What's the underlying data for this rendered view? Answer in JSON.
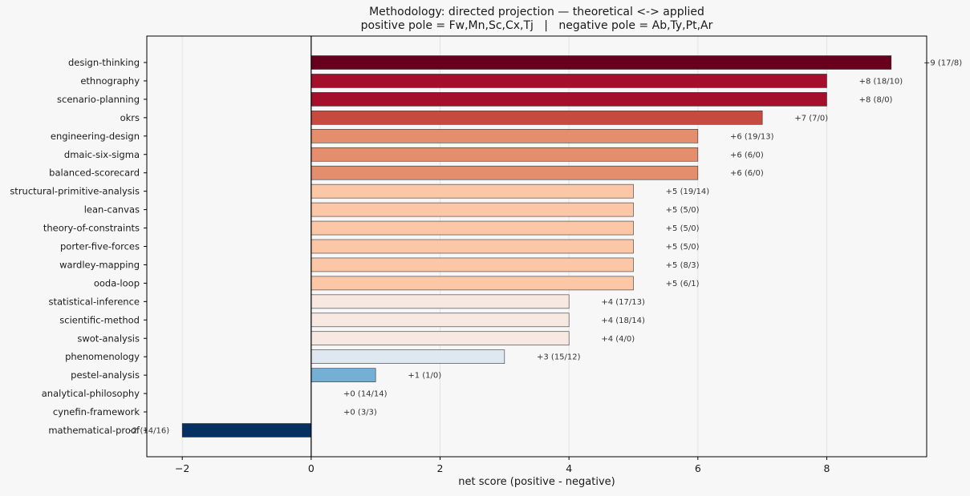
{
  "chart_data": {
    "type": "bar",
    "orientation": "horizontal",
    "title": "Methodology: directed projection — theoretical <-> applied",
    "subtitle": "positive pole = Fw,Mn,Sc,Cx,Tj   |   negative pole = Ab,Ty,Pt,Ar",
    "xlabel": "net score (positive - negative)",
    "ylabel": "",
    "xlim": [
      -2.55,
      9.55
    ],
    "xticks": [
      -2,
      0,
      2,
      4,
      6,
      8
    ],
    "grid": "vertical",
    "categories": [
      "design-thinking",
      "ethnography",
      "scenario-planning",
      "okrs",
      "engineering-design",
      "dmaic-six-sigma",
      "balanced-scorecard",
      "structural-primitive-analysis",
      "lean-canvas",
      "theory-of-constraints",
      "porter-five-forces",
      "wardley-mapping",
      "ooda-loop",
      "statistical-inference",
      "scientific-method",
      "swot-analysis",
      "phenomenology",
      "pestel-analysis",
      "analytical-philosophy",
      "cynefin-framework",
      "mathematical-proof"
    ],
    "values": [
      9,
      8,
      8,
      7,
      6,
      6,
      6,
      5,
      5,
      5,
      5,
      5,
      5,
      4,
      4,
      4,
      3,
      1,
      0,
      0,
      -2
    ],
    "data_labels": [
      "+9 (17/8)",
      "+8 (18/10)",
      "+8 (8/0)",
      "+7 (7/0)",
      "+6 (19/13)",
      "+6 (6/0)",
      "+6 (6/0)",
      "+5 (19/14)",
      "+5 (5/0)",
      "+5 (5/0)",
      "+5 (5/0)",
      "+5 (8/3)",
      "+5 (6/1)",
      "+4 (17/13)",
      "+4 (18/14)",
      "+4 (4/0)",
      "+3 (15/12)",
      "+1 (1/0)",
      "+0 (14/14)",
      "+0 (3/3)",
      "-2 (14/16)"
    ],
    "colors": [
      "#67001f",
      "#a50f2b",
      "#a50f2b",
      "#c64a3e",
      "#e58e6e",
      "#e58e6e",
      "#e58e6e",
      "#fcc7a6",
      "#fcc7a6",
      "#fcc7a6",
      "#fcc7a6",
      "#fcc7a6",
      "#fcc7a6",
      "#f7e8e1",
      "#f7e8e1",
      "#f7e8e1",
      "#dfe8f0",
      "#75afd4",
      "#f7f7f7",
      "#f7f7f7",
      "#053061"
    ]
  }
}
